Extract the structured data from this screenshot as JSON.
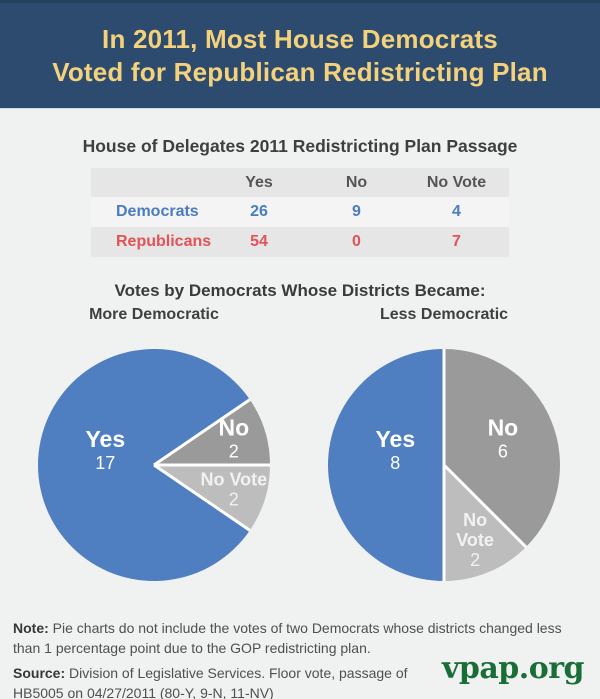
{
  "header": {
    "title_line1": "In 2011, Most House Democrats",
    "title_line2": "Voted for Republican Redistricting Plan"
  },
  "table_section": {
    "title": "House of Delegates 2011 Redistricting Plan Passage",
    "columns": [
      "Yes",
      "No",
      "No Vote"
    ],
    "rows": [
      {
        "label": "Democrats",
        "values": [
          "26",
          "9",
          "4"
        ]
      },
      {
        "label": "Republicans",
        "values": [
          "54",
          "0",
          "7"
        ]
      }
    ]
  },
  "pies_section": {
    "title": "Votes by Democrats Whose Districts Became:"
  },
  "chart_data": [
    {
      "type": "pie",
      "title": "More Democratic",
      "labels": [
        "Yes",
        "No",
        "No Vote"
      ],
      "values": [
        17,
        2,
        2
      ],
      "colors": [
        "#4f7ec1",
        "#9a9a9a",
        "#bdbdbd"
      ],
      "label_lines": [
        [
          "Yes",
          "17"
        ],
        [
          "No",
          "2"
        ],
        [
          "No Vote",
          "2"
        ]
      ],
      "label_r": [
        0.42,
        0.72,
        0.72
      ],
      "start_angle_cw_from_top": 124.29,
      "legend": "none"
    },
    {
      "type": "pie",
      "title": "Less Democratic",
      "labels": [
        "Yes",
        "No",
        "No Vote"
      ],
      "values": [
        8,
        6,
        2
      ],
      "colors": [
        "#4f7ec1",
        "#9a9a9a",
        "#bdbdbd"
      ],
      "label_lines": [
        [
          "Yes",
          "8"
        ],
        [
          "No",
          "6"
        ],
        [
          "No",
          "Vote",
          "2"
        ]
      ],
      "label_r": [
        0.42,
        0.55,
        0.7
      ],
      "start_angle_cw_from_top": 180,
      "legend": "none"
    }
  ],
  "footer": {
    "note_label": "Note:",
    "note_text": " Pie charts do not include the votes of two Democrats whose districts changed less than 1 percentage point due to the GOP redistricting plan.",
    "source_label": "Source:",
    "source_text": " Division of Legislative Services. Floor vote, passage of HB5005 on 04/27/2011 (80-Y, 9-N, 11-NV)",
    "logo_text": "vpap.org"
  },
  "colors": {
    "header_bg": "#2d4b6e",
    "header_text": "#f4d27c",
    "page_bg": "#f0f1f1",
    "table_gray_row": "#e6e6e6",
    "democrat_blue": "#4a7cc0",
    "republican_red": "#e25257",
    "pie_yes_blue": "#4f7ec1",
    "pie_no_gray": "#9a9a9a",
    "pie_novote_gray": "#bdbdbd",
    "logo_green": "#196d36"
  }
}
